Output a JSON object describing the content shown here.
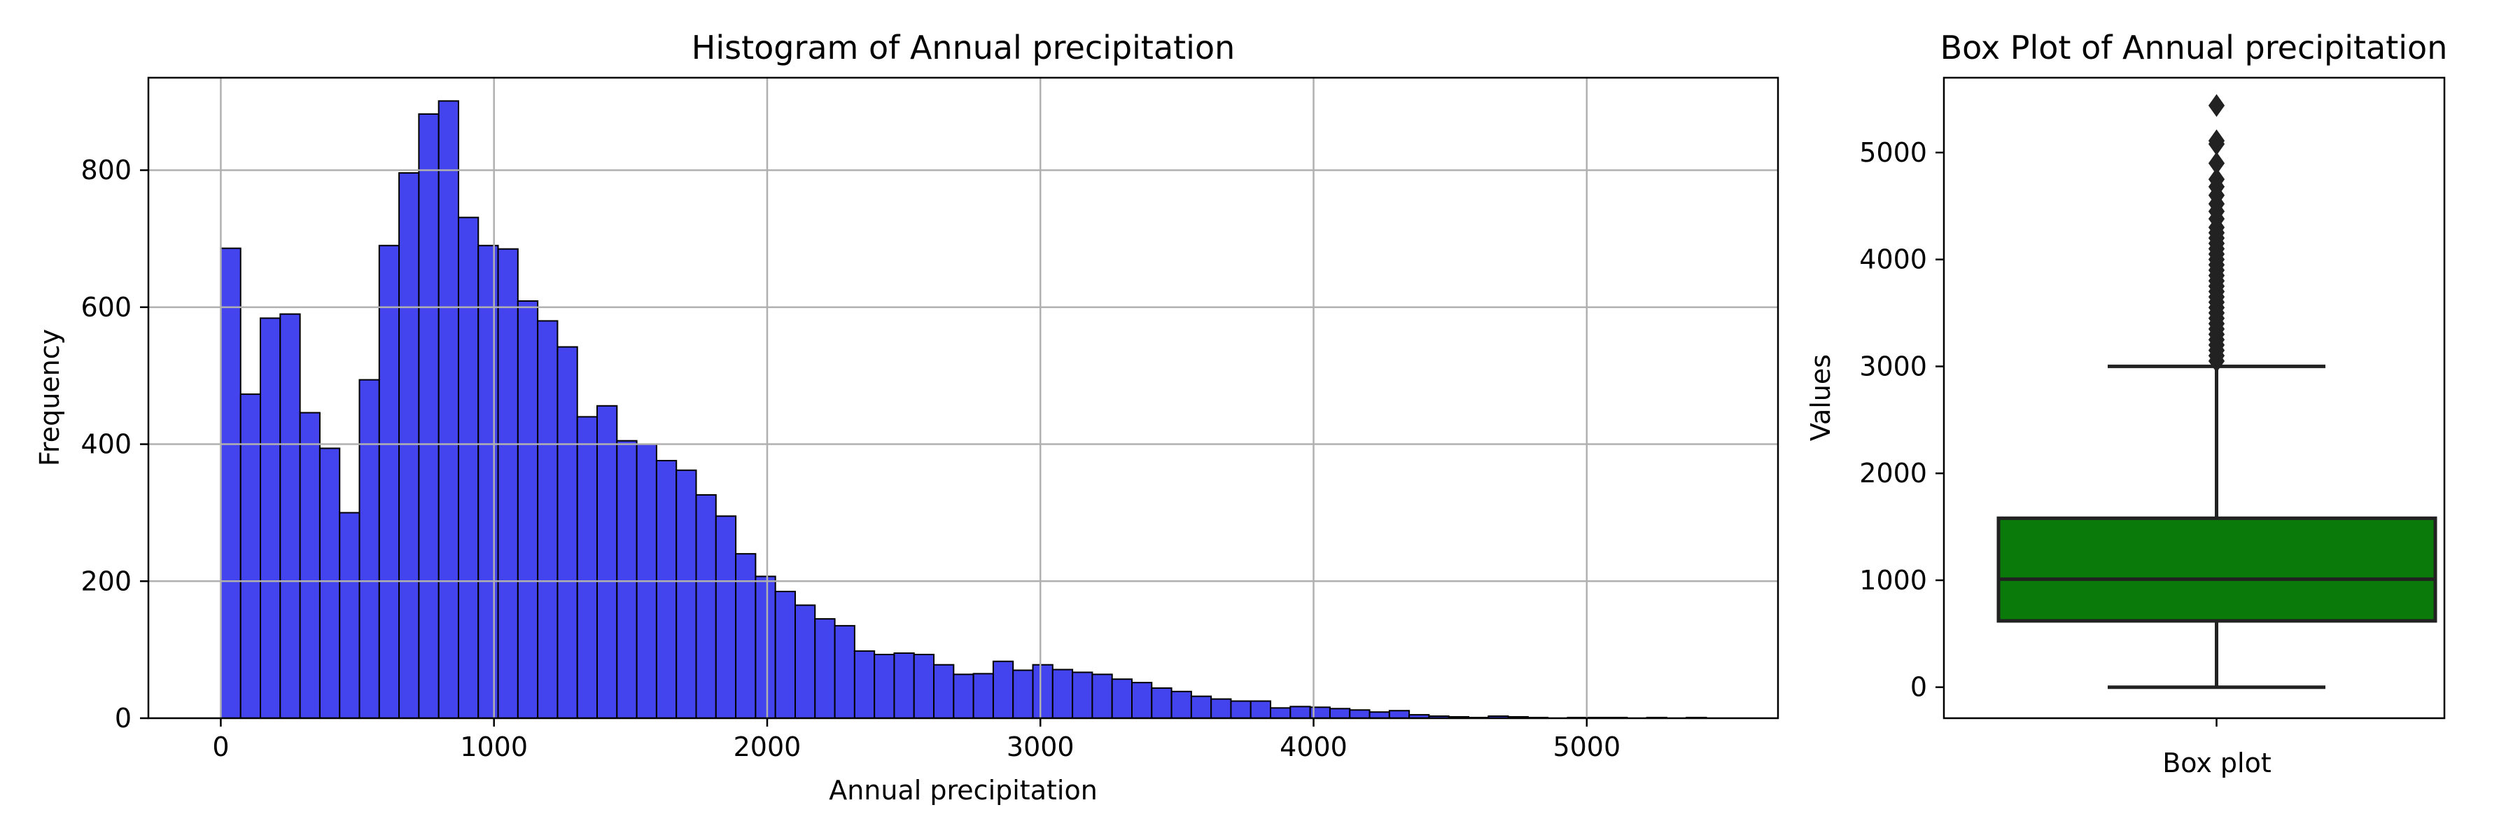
{
  "chart_data": [
    {
      "type": "bar",
      "title": "Histogram of Annual precipitation",
      "xlabel": "Annual precipitation",
      "ylabel": "Frequency",
      "xlim": [
        -265,
        5700
      ],
      "ylim": [
        0,
        935
      ],
      "xticks": [
        0,
        1000,
        2000,
        3000,
        4000,
        5000
      ],
      "yticks": [
        0,
        200,
        400,
        600,
        800
      ],
      "grid": true,
      "bin_width": 72.5,
      "bin_start": 0,
      "colors": {
        "bar_fill": "#4444ee",
        "bar_edge": "#000000",
        "grid": "#b0b0b0"
      },
      "values": [
        686,
        473,
        584,
        590,
        446,
        394,
        300,
        494,
        690,
        796,
        882,
        901,
        731,
        690,
        685,
        609,
        580,
        542,
        440,
        456,
        405,
        400,
        376,
        362,
        326,
        295,
        240,
        207,
        185,
        165,
        145,
        135,
        98,
        93,
        95,
        93,
        78,
        64,
        65,
        83,
        70,
        78,
        71,
        67,
        64,
        57,
        52,
        44,
        39,
        32,
        28,
        25,
        25,
        15,
        17,
        16,
        14,
        12,
        9,
        11,
        5,
        3,
        2,
        1,
        3,
        2,
        1,
        0,
        1,
        1,
        1,
        0,
        1,
        0,
        1,
        0
      ]
    },
    {
      "type": "box",
      "title": "Box Plot of Annual precipitation",
      "xlabel": "Box plot",
      "ylabel": "Values",
      "ylim": [
        -290,
        5700
      ],
      "yticks": [
        0,
        1000,
        2000,
        3000,
        4000,
        5000
      ],
      "whisker_low": 0,
      "q1": 620,
      "median": 1010,
      "q3": 1580,
      "whisker_high": 3000,
      "outliers": [
        3050,
        3100,
        3150,
        3200,
        3250,
        3300,
        3350,
        3400,
        3450,
        3500,
        3550,
        3600,
        3650,
        3700,
        3750,
        3800,
        3850,
        3900,
        3950,
        4000,
        4050,
        4100,
        4150,
        4200,
        4250,
        4300,
        4380,
        4450,
        4520,
        4600,
        4680,
        4750,
        4900,
        5080,
        5110,
        5440
      ],
      "colors": {
        "box_fill": "#0a7a0a",
        "line": "#222222"
      }
    }
  ]
}
